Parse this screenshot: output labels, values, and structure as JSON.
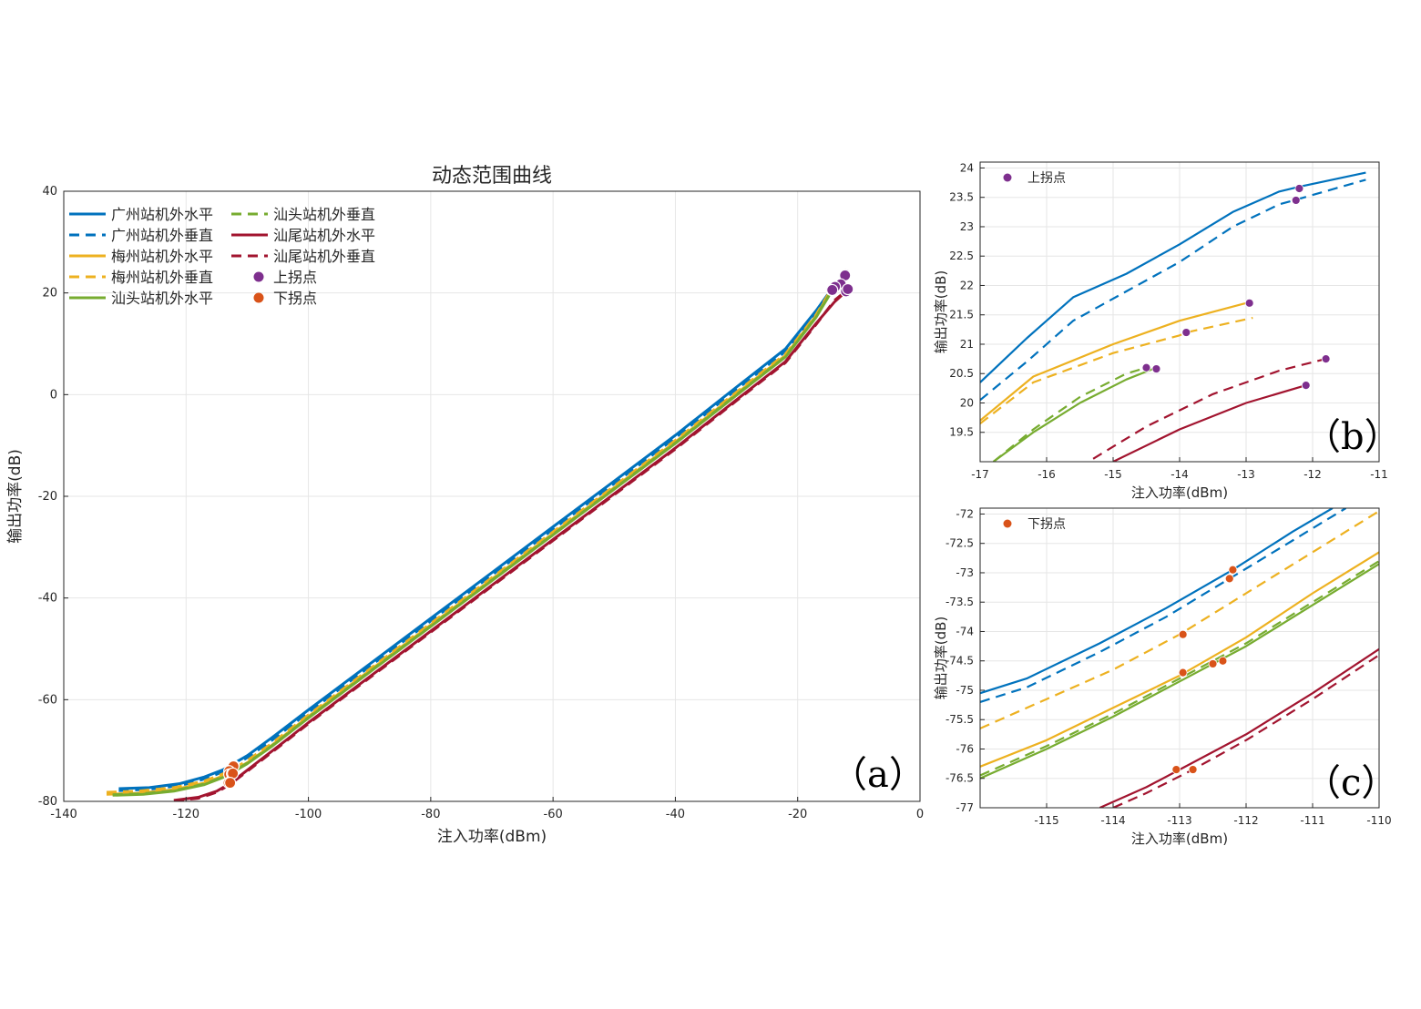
{
  "chart_data": [
    {
      "id": "a",
      "type": "line",
      "title": "动态范围曲线",
      "xlabel": "注入功率(dBm)",
      "ylabel": "输出功率(dB)",
      "xlim": [
        -140,
        0
      ],
      "ylim": [
        -80,
        40
      ],
      "xticks": [
        -140,
        -120,
        -100,
        -80,
        -60,
        -40,
        -20,
        0
      ],
      "yticks": [
        -80,
        -60,
        -40,
        -20,
        0,
        20,
        40
      ],
      "grid": true,
      "legend_position": "top-left",
      "panel_label": "（a）",
      "series": [
        {
          "name": "广州站机外水平",
          "color": "#0072BD",
          "dash": "solid",
          "x": [
            -131,
            -126,
            -121,
            -117,
            -114,
            -112,
            -110,
            -106,
            -100,
            -90,
            -80,
            -70,
            -60,
            -50,
            -40,
            -30,
            -22,
            -17,
            -14,
            -12.2,
            -11.5
          ],
          "y": [
            -77.5,
            -77.3,
            -76.5,
            -75.2,
            -73.8,
            -72.4,
            -71,
            -67.5,
            -62,
            -53,
            -44,
            -35,
            -26,
            -17,
            -8,
            1.5,
            9,
            16.5,
            21.5,
            23.5,
            23.9
          ]
        },
        {
          "name": "广州站机外垂直",
          "color": "#0072BD",
          "dash": "dashed",
          "x": [
            -131,
            -126,
            -121,
            -117,
            -114,
            -112,
            -110,
            -106,
            -100,
            -90,
            -80,
            -70,
            -60,
            -50,
            -40,
            -30,
            -22,
            -17,
            -14,
            -12.2,
            -11.5
          ],
          "y": [
            -77.9,
            -77.6,
            -76.9,
            -75.6,
            -74.2,
            -72.8,
            -71.4,
            -68,
            -62.5,
            -53.5,
            -44.5,
            -35.5,
            -26.5,
            -17.5,
            -8.5,
            1,
            8.5,
            16,
            21,
            23.3,
            23.7
          ]
        },
        {
          "name": "梅州站机外水平",
          "color": "#EDB120",
          "dash": "solid",
          "x": [
            -133,
            -128,
            -122,
            -117,
            -114,
            -112,
            -110,
            -106,
            -100,
            -90,
            -80,
            -70,
            -60,
            -50,
            -40,
            -30,
            -22,
            -17,
            -15,
            -13
          ],
          "y": [
            -78.6,
            -78.4,
            -77.7,
            -76.4,
            -75,
            -73.8,
            -72.4,
            -69,
            -63.3,
            -54.3,
            -45.3,
            -36.3,
            -27.3,
            -18.3,
            -9.3,
            0.2,
            7.7,
            15.5,
            19.5,
            21.7
          ]
        },
        {
          "name": "梅州站机外垂直",
          "color": "#EDB120",
          "dash": "dashed",
          "x": [
            -133,
            -128,
            -122,
            -117,
            -114,
            -112,
            -110,
            -106,
            -100,
            -90,
            -80,
            -70,
            -60,
            -50,
            -40,
            -30,
            -22,
            -17,
            -15,
            -13
          ],
          "y": [
            -78.2,
            -78,
            -77.3,
            -76,
            -74.6,
            -73.4,
            -72,
            -68.6,
            -63,
            -54,
            -45,
            -36,
            -27,
            -18,
            -9,
            0.5,
            8,
            15.7,
            19.7,
            21.4
          ]
        },
        {
          "name": "汕头站机外水平",
          "color": "#77AC30",
          "dash": "solid",
          "x": [
            -132,
            -127,
            -122,
            -117,
            -114,
            -112,
            -110,
            -106,
            -100,
            -90,
            -80,
            -70,
            -60,
            -50,
            -40,
            -30,
            -22,
            -17,
            -15,
            -14.4
          ],
          "y": [
            -78.8,
            -78.6,
            -78,
            -76.7,
            -75.3,
            -74,
            -72.6,
            -69.2,
            -63.6,
            -54.6,
            -45.6,
            -36.6,
            -27.6,
            -18.6,
            -9.6,
            -0.1,
            7.4,
            15.2,
            19.2,
            20.6
          ]
        },
        {
          "name": "汕头站机外垂直",
          "color": "#77AC30",
          "dash": "dashed",
          "x": [
            -132,
            -127,
            -122,
            -117,
            -114,
            -112,
            -110,
            -106,
            -100,
            -90,
            -80,
            -70,
            -60,
            -50,
            -40,
            -30,
            -22,
            -17,
            -15,
            -14.4
          ],
          "y": [
            -78.7,
            -78.5,
            -77.9,
            -76.6,
            -75.2,
            -73.9,
            -72.5,
            -69.1,
            -63.5,
            -54.5,
            -45.5,
            -36.5,
            -27.5,
            -18.5,
            -9.5,
            0,
            7.5,
            15.3,
            19.3,
            20.6
          ]
        },
        {
          "name": "汕尾站机外水平",
          "color": "#A2142F",
          "dash": "solid",
          "x": [
            -122,
            -118,
            -115,
            -113,
            -111,
            -108,
            -104,
            -100,
            -90,
            -80,
            -70,
            -60,
            -50,
            -40,
            -30,
            -22,
            -17,
            -14,
            -12.1
          ],
          "y": [
            -79.8,
            -79.2,
            -78,
            -76.6,
            -74.8,
            -72,
            -68.3,
            -64.5,
            -55.5,
            -46.5,
            -37.5,
            -28.5,
            -19.5,
            -10.5,
            -1,
            6.5,
            14,
            18.2,
            20.3
          ]
        },
        {
          "name": "汕尾站机外垂直",
          "color": "#A2142F",
          "dash": "dashed",
          "x": [
            -122,
            -118,
            -115,
            -113,
            -111,
            -108,
            -104,
            -100,
            -90,
            -80,
            -70,
            -60,
            -50,
            -40,
            -30,
            -22,
            -17,
            -14,
            -11.8
          ],
          "y": [
            -79.9,
            -79.4,
            -78.2,
            -76.8,
            -75,
            -72.2,
            -68.5,
            -64.7,
            -55.7,
            -46.7,
            -37.7,
            -28.7,
            -19.7,
            -10.7,
            -1.2,
            6.3,
            13.8,
            18.5,
            20.7
          ]
        },
        {
          "name": "上拐点",
          "color": "#7E2F8E",
          "marker": "circle",
          "x": [
            -12.2,
            -12.25,
            -12.95,
            -13.9,
            -14.5,
            -14.35,
            -12.1,
            -11.8
          ],
          "y": [
            23.65,
            23.45,
            21.7,
            21.2,
            20.6,
            20.58,
            20.3,
            20.75
          ]
        },
        {
          "name": "下拐点",
          "color": "#D95319",
          "marker": "circle",
          "x": [
            -112.2,
            -112.25,
            -112.95,
            -112.95,
            -112.5,
            -112.35,
            -113.05,
            -112.8
          ],
          "y": [
            -72.95,
            -73.1,
            -74.05,
            -74.7,
            -74.55,
            -74.5,
            -76.35,
            -76.35
          ]
        }
      ]
    },
    {
      "id": "b",
      "type": "line",
      "title": "",
      "xlabel": "注入功率(dBm)",
      "ylabel": "输出功率(dB)",
      "xlim": [
        -17,
        -11
      ],
      "ylim": [
        19,
        24.1
      ],
      "xticks": [
        -17,
        -16,
        -15,
        -14,
        -13,
        -12,
        -11
      ],
      "yticks": [
        19.5,
        20,
        20.5,
        21,
        21.5,
        22,
        22.5,
        23,
        23.5,
        24
      ],
      "grid": true,
      "legend_position": "top-left",
      "legend_entries": [
        "上拐点"
      ],
      "panel_label": "（b）",
      "series": [
        {
          "name": "广州站机外水平",
          "color": "#0072BD",
          "dash": "solid",
          "x": [
            -17,
            -16.3,
            -15.6,
            -14.8,
            -14,
            -13.2,
            -12.5,
            -12.2,
            -11.2
          ],
          "y": [
            20.35,
            21.1,
            21.8,
            22.2,
            22.7,
            23.25,
            23.6,
            23.68,
            23.92
          ]
        },
        {
          "name": "广州站机外垂直",
          "color": "#0072BD",
          "dash": "dashed",
          "x": [
            -17,
            -16.3,
            -15.6,
            -14.8,
            -14,
            -13.2,
            -12.5,
            -12.25,
            -11.2
          ],
          "y": [
            20.05,
            20.7,
            21.4,
            21.9,
            22.4,
            23.0,
            23.38,
            23.46,
            23.8
          ]
        },
        {
          "name": "梅州站机外水平",
          "color": "#EDB120",
          "dash": "solid",
          "x": [
            -17,
            -16.2,
            -15,
            -14,
            -13,
            -12.95
          ],
          "y": [
            19.7,
            20.45,
            21.0,
            21.4,
            21.7,
            21.7
          ]
        },
        {
          "name": "梅州站机外垂直",
          "color": "#EDB120",
          "dash": "dashed",
          "x": [
            -17,
            -16.2,
            -15,
            -14,
            -13.9,
            -12.9
          ],
          "y": [
            19.65,
            20.35,
            20.85,
            21.15,
            21.2,
            21.45
          ]
        },
        {
          "name": "汕头站机外水平",
          "color": "#77AC30",
          "dash": "solid",
          "x": [
            -16.8,
            -16.2,
            -15.5,
            -14.8,
            -14.4
          ],
          "y": [
            19.0,
            19.5,
            20.0,
            20.4,
            20.58
          ]
        },
        {
          "name": "汕头站机外垂直",
          "color": "#77AC30",
          "dash": "dashed",
          "x": [
            -16.8,
            -16.2,
            -15.5,
            -14.8,
            -14.5
          ],
          "y": [
            19.0,
            19.55,
            20.1,
            20.5,
            20.6
          ]
        },
        {
          "name": "汕尾站机外水平",
          "color": "#A2142F",
          "dash": "solid",
          "x": [
            -15,
            -14,
            -13,
            -12.1
          ],
          "y": [
            19.0,
            19.55,
            20.0,
            20.3
          ]
        },
        {
          "name": "汕尾站机外垂直",
          "color": "#A2142F",
          "dash": "dashed",
          "x": [
            -15.3,
            -14.5,
            -13.5,
            -12.5,
            -11.8
          ],
          "y": [
            19.05,
            19.6,
            20.15,
            20.55,
            20.75
          ]
        },
        {
          "name": "上拐点",
          "color": "#7E2F8E",
          "marker": "circle",
          "x": [
            -12.2,
            -12.25,
            -12.95,
            -13.9,
            -14.5,
            -14.35,
            -12.1,
            -11.8
          ],
          "y": [
            23.65,
            23.45,
            21.7,
            21.2,
            20.6,
            20.58,
            20.3,
            20.75
          ]
        }
      ]
    },
    {
      "id": "c",
      "type": "line",
      "title": "",
      "xlabel": "注入功率(dBm)",
      "ylabel": "输出功率(dB)",
      "xlim": [
        -116,
        -110
      ],
      "ylim": [
        -77,
        -71.9
      ],
      "xticks": [
        -115,
        -114,
        -113,
        -112,
        -111,
        -110
      ],
      "yticks": [
        -77,
        -76.5,
        -76,
        -75.5,
        -75,
        -74.5,
        -74,
        -73.5,
        -73,
        -72.5,
        -72
      ],
      "grid": true,
      "legend_position": "top-left",
      "legend_entries": [
        "下拐点"
      ],
      "panel_label": "（c）",
      "series": [
        {
          "name": "广州站机外水平",
          "color": "#0072BD",
          "dash": "solid",
          "x": [
            -116,
            -115.3,
            -114.2,
            -113.2,
            -112.2,
            -111.3,
            -110.7
          ],
          "y": [
            -75.05,
            -74.8,
            -74.2,
            -73.6,
            -72.95,
            -72.3,
            -71.9
          ]
        },
        {
          "name": "广州站机外垂直",
          "color": "#0072BD",
          "dash": "dashed",
          "x": [
            -116,
            -115.3,
            -114.2,
            -113.2,
            -112.25,
            -111.3,
            -110.5
          ],
          "y": [
            -75.2,
            -74.95,
            -74.35,
            -73.75,
            -73.1,
            -72.45,
            -71.9
          ]
        },
        {
          "name": "梅州站机外水平",
          "color": "#EDB120",
          "dash": "solid",
          "x": [
            -116,
            -115,
            -114,
            -113,
            -112,
            -111,
            -110
          ],
          "y": [
            -76.3,
            -75.85,
            -75.3,
            -74.75,
            -74.1,
            -73.35,
            -72.65
          ]
        },
        {
          "name": "梅州站机外垂直",
          "color": "#EDB120",
          "dash": "dashed",
          "x": [
            -116,
            -115,
            -114,
            -113,
            -112,
            -111,
            -110
          ],
          "y": [
            -75.65,
            -75.15,
            -74.65,
            -74.05,
            -73.35,
            -72.65,
            -71.95
          ]
        },
        {
          "name": "汕头站机外水平",
          "color": "#77AC30",
          "dash": "solid",
          "x": [
            -116,
            -115,
            -114,
            -113,
            -112,
            -111,
            -110
          ],
          "y": [
            -76.5,
            -76.0,
            -75.45,
            -74.85,
            -74.25,
            -73.55,
            -72.85
          ]
        },
        {
          "name": "汕头站机外垂直",
          "color": "#77AC30",
          "dash": "dashed",
          "x": [
            -116,
            -115,
            -114,
            -113,
            -112,
            -111,
            -110
          ],
          "y": [
            -76.45,
            -75.95,
            -75.4,
            -74.8,
            -74.2,
            -73.5,
            -72.8
          ]
        },
        {
          "name": "汕尾站机外水平",
          "color": "#A2142F",
          "dash": "solid",
          "x": [
            -114.2,
            -113.5,
            -113,
            -112,
            -111,
            -110
          ],
          "y": [
            -77.0,
            -76.65,
            -76.35,
            -75.75,
            -75.05,
            -74.3
          ]
        },
        {
          "name": "汕尾站机外垂直",
          "color": "#A2142F",
          "dash": "dashed",
          "x": [
            -114,
            -113.5,
            -112.8,
            -112,
            -111,
            -110
          ],
          "y": [
            -77.0,
            -76.75,
            -76.35,
            -75.85,
            -75.15,
            -74.4
          ]
        },
        {
          "name": "下拐点",
          "color": "#D95319",
          "marker": "circle",
          "x": [
            -112.2,
            -112.25,
            -112.95,
            -112.95,
            -112.5,
            -112.35,
            -113.05,
            -112.8
          ],
          "y": [
            -72.95,
            -73.1,
            -74.05,
            -74.7,
            -74.55,
            -74.5,
            -76.35,
            -76.35
          ]
        }
      ]
    }
  ]
}
